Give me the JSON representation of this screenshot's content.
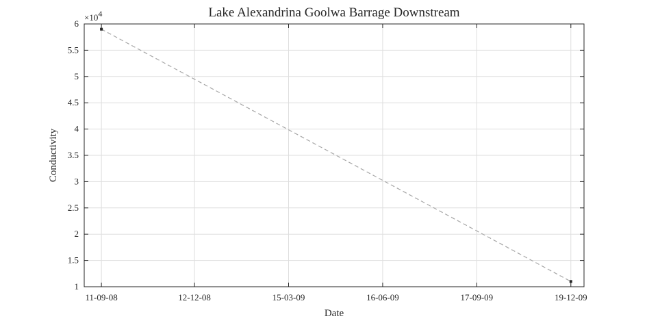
{
  "chart_data": {
    "type": "line",
    "title": "Lake Alexandrina Goolwa Barrage Downstream",
    "xlabel": "Date",
    "ylabel": "Conductivity",
    "y_multiplier_label": "×10",
    "y_multiplier_exponent": "4",
    "xlim": [
      "2008-08-25",
      "2010-01-01"
    ],
    "ylim": [
      1,
      6
    ],
    "x_ticks": [
      {
        "date": "2008-09-11",
        "label": "11-09-08"
      },
      {
        "date": "2008-12-12",
        "label": "12-12-08"
      },
      {
        "date": "2009-03-15",
        "label": "15-03-09"
      },
      {
        "date": "2009-06-16",
        "label": "16-06-09"
      },
      {
        "date": "2009-09-17",
        "label": "17-09-09"
      },
      {
        "date": "2009-12-19",
        "label": "19-12-09"
      }
    ],
    "y_ticks": [
      {
        "value": 1,
        "label": "1"
      },
      {
        "value": 1.5,
        "label": "1.5"
      },
      {
        "value": 2,
        "label": "2"
      },
      {
        "value": 2.5,
        "label": "2.5"
      },
      {
        "value": 3,
        "label": "3"
      },
      {
        "value": 3.5,
        "label": "3.5"
      },
      {
        "value": 4,
        "label": "4"
      },
      {
        "value": 4.5,
        "label": "4.5"
      },
      {
        "value": 5,
        "label": "5"
      },
      {
        "value": 5.5,
        "label": "5.5"
      },
      {
        "value": 6,
        "label": "6"
      }
    ],
    "grid": true,
    "line_style": "dashed",
    "colors": {
      "line": "#a6a6a6",
      "marker": "#262626",
      "grid": "#dedede"
    },
    "series": [
      {
        "points": [
          {
            "x": "2008-09-11",
            "y": 5.9
          },
          {
            "x": "2009-12-19",
            "y": 1.1
          }
        ]
      }
    ]
  }
}
